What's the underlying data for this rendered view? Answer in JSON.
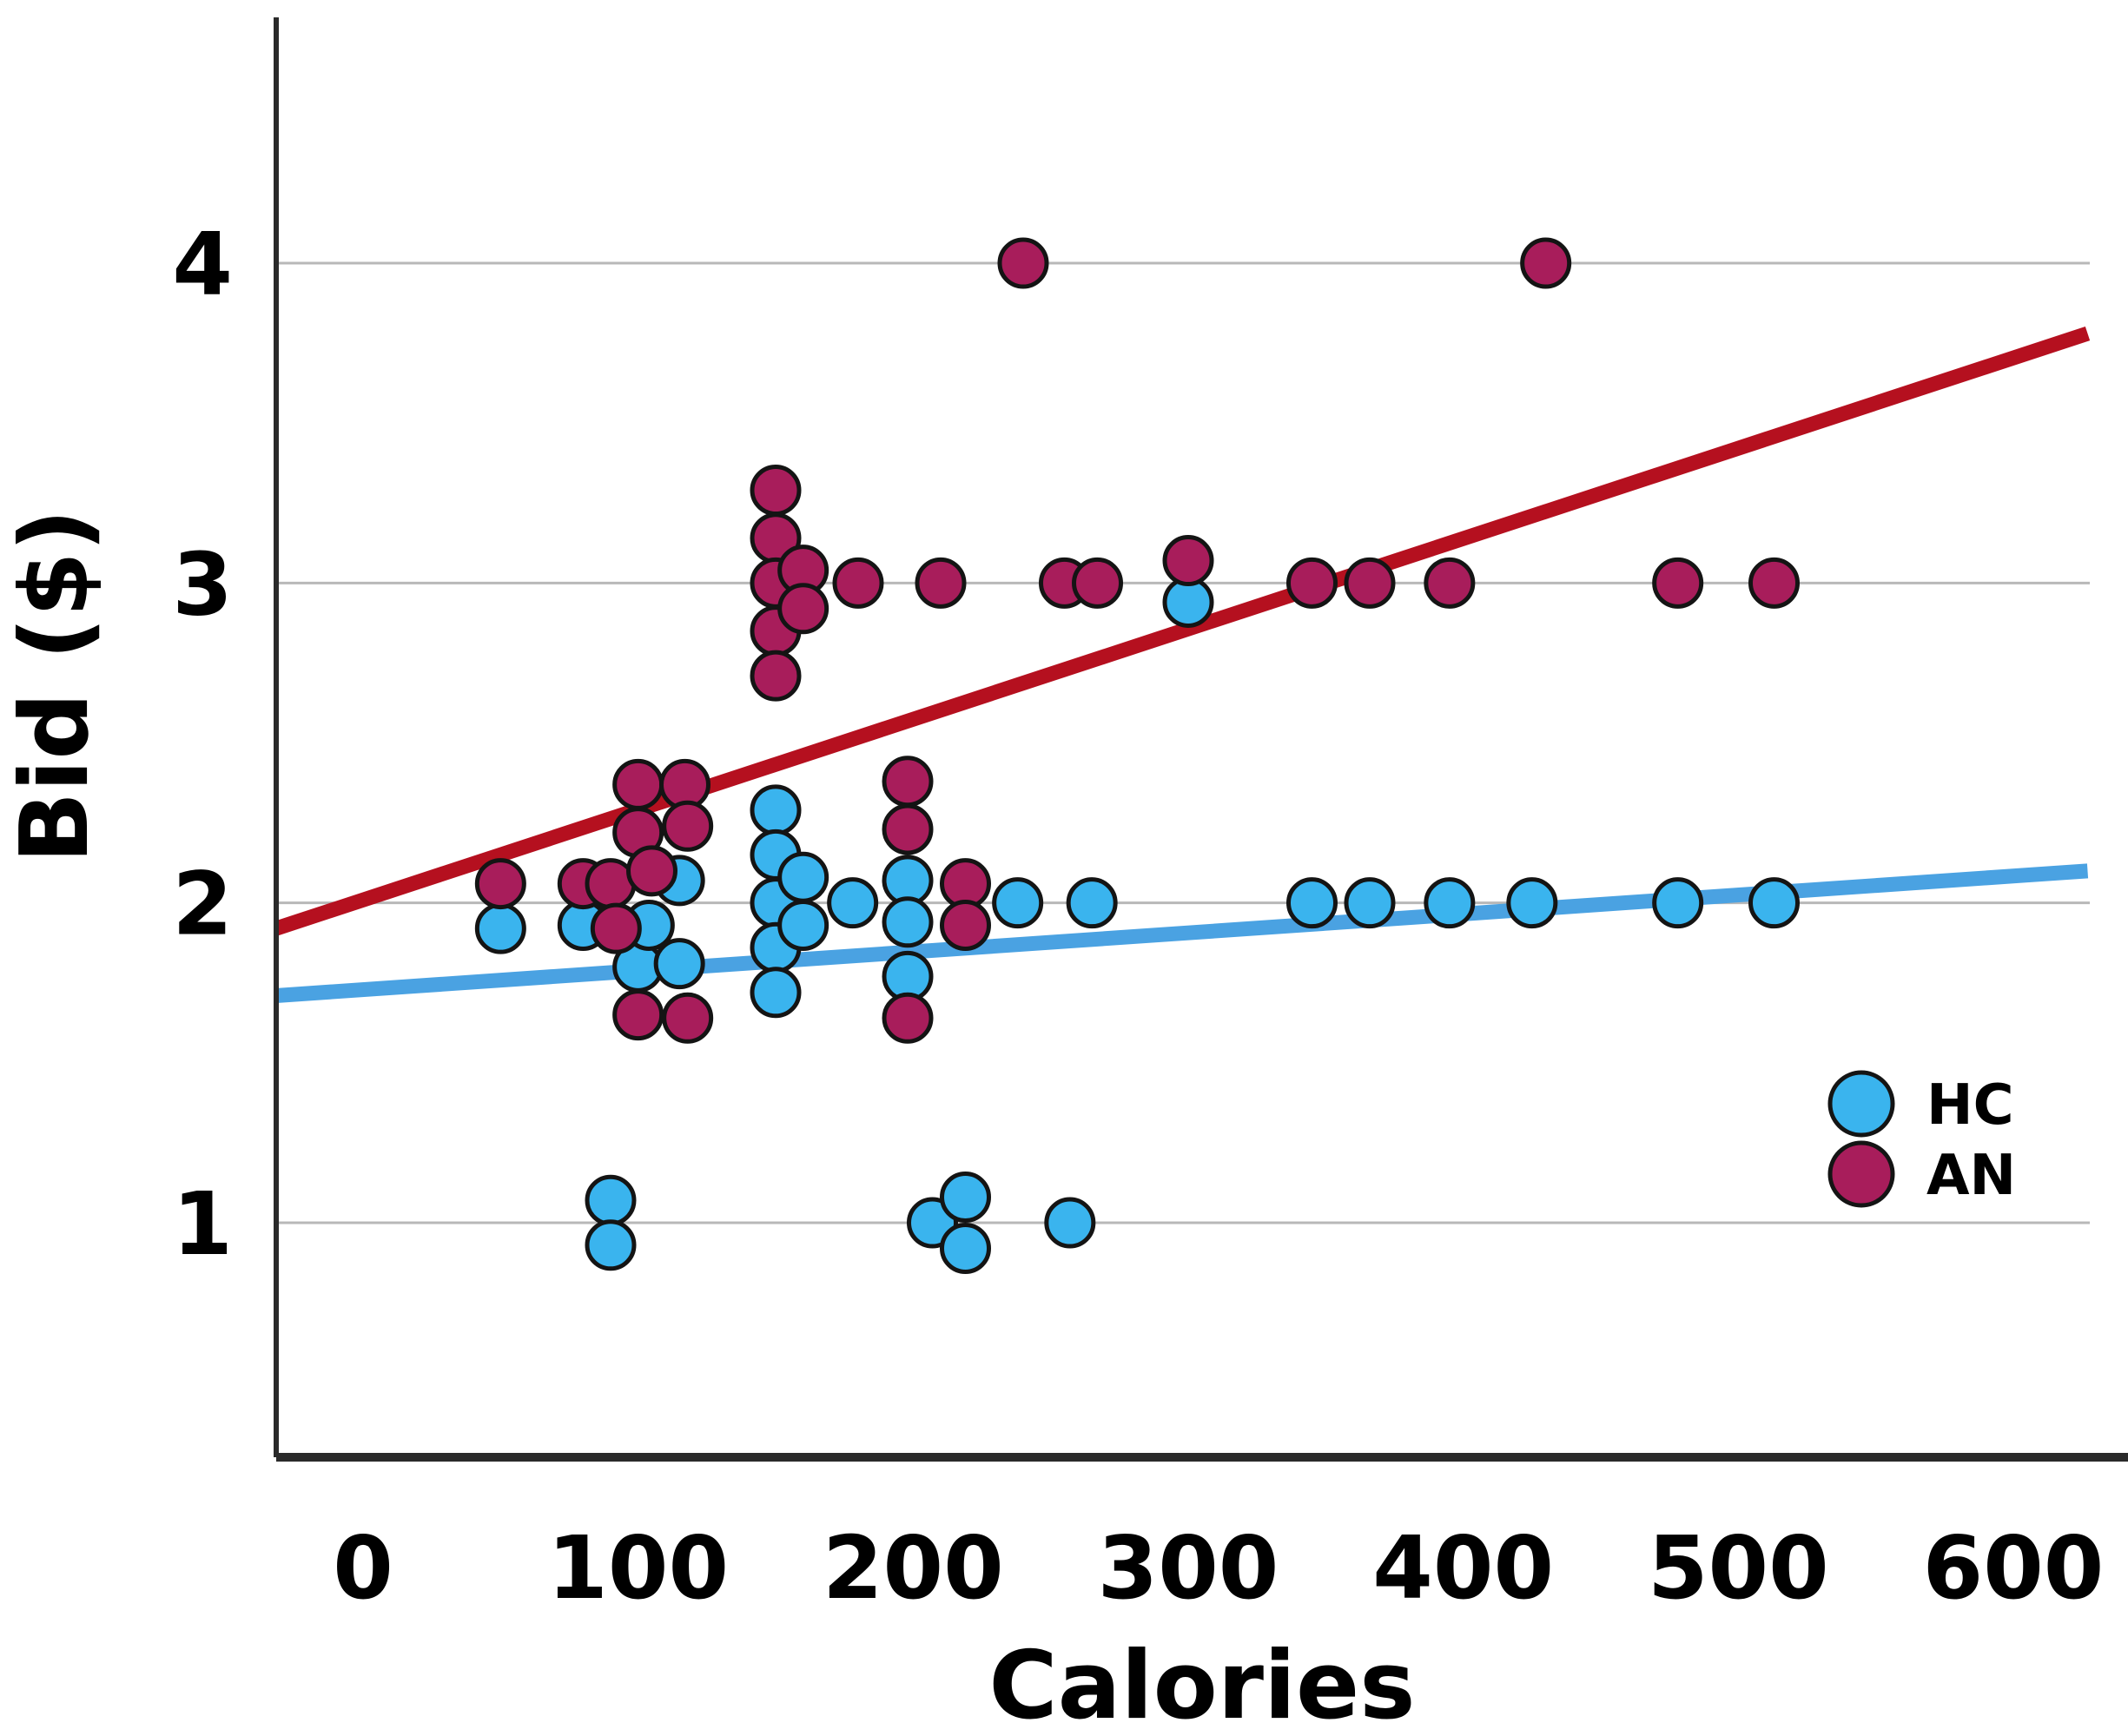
{
  "chart_data": {
    "type": "scatter",
    "title": "",
    "xlabel": "Calories",
    "ylabel": "Bid ($)",
    "x_ticks": [
      0,
      100,
      200,
      300,
      400,
      500,
      600
    ],
    "y_ticks": [
      1,
      2,
      3,
      4
    ],
    "xlim": [
      -32,
      628
    ],
    "ylim": [
      0.3,
      4.8
    ],
    "grid": "horizontal-only",
    "legend_position": "bottom-right",
    "series": [
      {
        "name": "HC",
        "color": "#3ab4ee",
        "marker": "circle",
        "points": [
          [
            50,
            1.92
          ],
          [
            80,
            1.93
          ],
          [
            90,
            1.07
          ],
          [
            90,
            0.93
          ],
          [
            100,
            1.8
          ],
          [
            104,
            1.93
          ],
          [
            115,
            2.07
          ],
          [
            115,
            1.81
          ],
          [
            150,
            2.29
          ],
          [
            150,
            2.15
          ],
          [
            150,
            2.0
          ],
          [
            150,
            1.86
          ],
          [
            150,
            1.72
          ],
          [
            160,
            2.08
          ],
          [
            160,
            1.93
          ],
          [
            178,
            2.0
          ],
          [
            198,
            2.07
          ],
          [
            198,
            1.94
          ],
          [
            198,
            1.77
          ],
          [
            207,
            1.0
          ],
          [
            219,
            1.08
          ],
          [
            219,
            0.92
          ],
          [
            238,
            2.0
          ],
          [
            257,
            1.0
          ],
          [
            265,
            2.0
          ],
          [
            300,
            2.94
          ],
          [
            345,
            2.0
          ],
          [
            366,
            2.0
          ],
          [
            395,
            2.0
          ],
          [
            425,
            2.0
          ],
          [
            478,
            2.0
          ],
          [
            513,
            2.0
          ]
        ]
      },
      {
        "name": "AN",
        "color": "#a81d5b",
        "marker": "circle",
        "points": [
          [
            50,
            2.06
          ],
          [
            80,
            2.06
          ],
          [
            90,
            2.06
          ],
          [
            92,
            1.92
          ],
          [
            100,
            2.37
          ],
          [
            100,
            2.22
          ],
          [
            100,
            1.65
          ],
          [
            105,
            2.1
          ],
          [
            117,
            2.37
          ],
          [
            118,
            2.24
          ],
          [
            118,
            1.64
          ],
          [
            150,
            3.29
          ],
          [
            150,
            3.14
          ],
          [
            150,
            3.0
          ],
          [
            150,
            2.85
          ],
          [
            150,
            2.71
          ],
          [
            160,
            3.04
          ],
          [
            160,
            2.92
          ],
          [
            180,
            3.0
          ],
          [
            198,
            2.38
          ],
          [
            198,
            2.23
          ],
          [
            198,
            1.64
          ],
          [
            210,
            3.0
          ],
          [
            219,
            2.06
          ],
          [
            219,
            1.93
          ],
          [
            240,
            4.0
          ],
          [
            255,
            3.0
          ],
          [
            267,
            3.0
          ],
          [
            300,
            3.07
          ],
          [
            345,
            3.0
          ],
          [
            366,
            3.0
          ],
          [
            395,
            3.0
          ],
          [
            430,
            4.0
          ],
          [
            478,
            3.0
          ],
          [
            513,
            3.0
          ]
        ]
      }
    ],
    "trend_lines": [
      {
        "series": "AN",
        "color": "#b5101f",
        "x1": -31.6,
        "y1": 1.92,
        "x2": 627.0,
        "y2": 3.78
      },
      {
        "series": "HC",
        "color": "#4aa2e2",
        "x1": -31.6,
        "y1": 1.71,
        "x2": 627.0,
        "y2": 2.1
      }
    ]
  }
}
